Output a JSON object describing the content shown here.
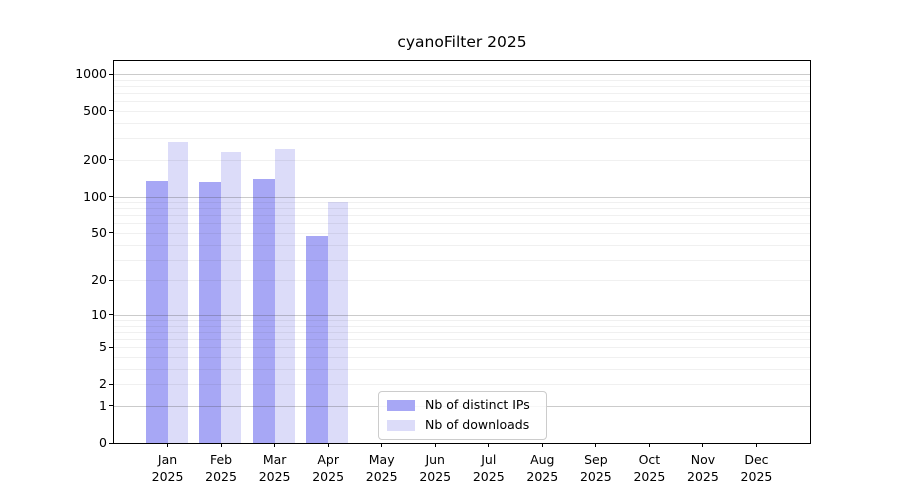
{
  "title": "cyanoFilter 2025",
  "chart_data": {
    "type": "bar",
    "title": "cyanoFilter 2025",
    "categories": [
      "Jan",
      "Feb",
      "Mar",
      "Apr",
      "May",
      "Jun",
      "Jul",
      "Aug",
      "Sep",
      "Oct",
      "Nov",
      "Dec"
    ],
    "x_tick_year": "2025",
    "series": [
      {
        "name": "Nb of distinct IPs",
        "color": "#a7a7f5",
        "values": [
          135,
          132,
          138,
          47,
          0,
          0,
          0,
          0,
          0,
          0,
          0,
          0
        ]
      },
      {
        "name": "Nb of downloads",
        "color": "#dcdcf9",
        "values": [
          280,
          230,
          245,
          90,
          0,
          0,
          0,
          0,
          0,
          0,
          0,
          0
        ]
      }
    ],
    "yscale": "log1p",
    "ylim": [
      0,
      1000
    ],
    "yticks": [
      0,
      1,
      2,
      5,
      10,
      20,
      50,
      100,
      200,
      500,
      1000
    ],
    "grid": true,
    "legend_position": "lower center"
  }
}
